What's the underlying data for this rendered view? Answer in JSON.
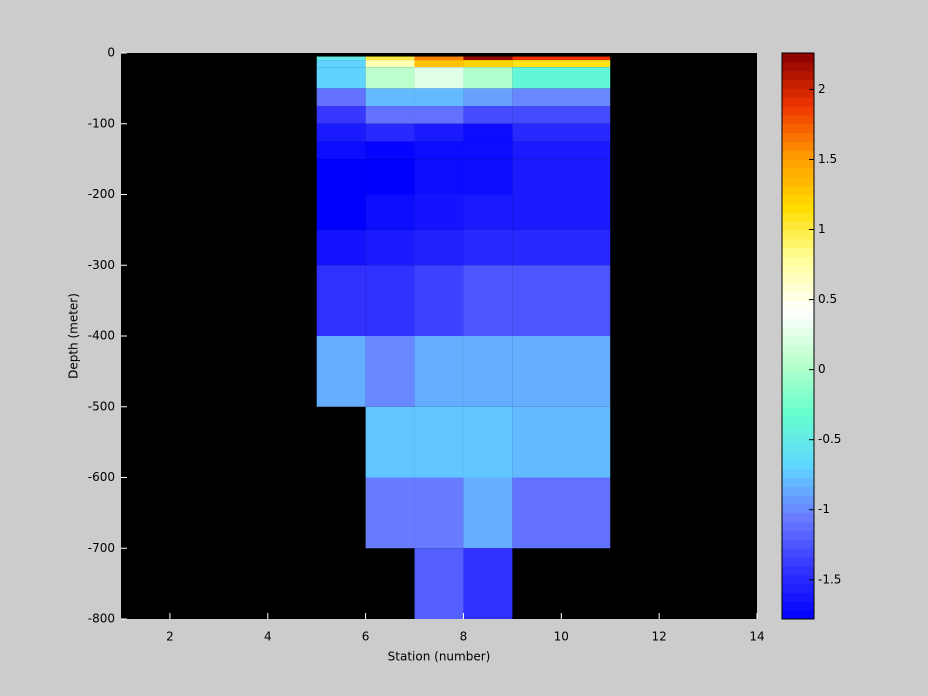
{
  "chart_data": {
    "type": "heatmap",
    "xlabel": "Station (number)",
    "ylabel": "Depth (meter)",
    "xlim": [
      1,
      14
    ],
    "ylim": [
      -800,
      0
    ],
    "xticks": [
      2,
      4,
      6,
      8,
      10,
      12,
      14
    ],
    "yticks": [
      0,
      -100,
      -200,
      -300,
      -400,
      -500,
      -600,
      -700,
      -800
    ],
    "x_edges": [
      5,
      6,
      7,
      8,
      9,
      11
    ],
    "y_edges": [
      -5,
      -10,
      -20,
      -50,
      -75,
      -100,
      -125,
      -150,
      -200,
      -250,
      -300,
      -400,
      -500,
      -600,
      -700,
      -800
    ],
    "values": [
      [
        -0.5,
        1.0,
        1.6,
        2.2,
        1.9
      ],
      [
        -0.7,
        0.7,
        1.3,
        1.2,
        1.1
      ],
      [
        -0.7,
        0.05,
        0.25,
        0.0,
        -0.4
      ],
      [
        -1.1,
        -0.8,
        -0.8,
        -0.9,
        -1.0
      ],
      [
        -1.4,
        -1.1,
        -1.1,
        -1.3,
        -1.3
      ],
      [
        -1.6,
        -1.5,
        -1.6,
        -1.7,
        -1.5
      ],
      [
        -1.7,
        -1.75,
        -1.7,
        -1.7,
        -1.6
      ],
      [
        -1.78,
        -1.78,
        -1.7,
        -1.7,
        -1.6
      ],
      [
        -1.78,
        -1.7,
        -1.65,
        -1.6,
        -1.6
      ],
      [
        -1.65,
        -1.6,
        -1.55,
        -1.5,
        -1.5
      ],
      [
        -1.45,
        -1.45,
        -1.35,
        -1.25,
        -1.25
      ],
      [
        -0.85,
        -1.0,
        -0.85,
        -0.85,
        -0.85
      ],
      [
        null,
        -0.75,
        -0.75,
        -0.75,
        -0.8
      ],
      [
        null,
        -1.05,
        -1.05,
        -0.85,
        -1.1
      ],
      [
        null,
        null,
        -1.2,
        -1.45,
        null
      ]
    ],
    "clim": [
      -1.78,
      2.26
    ],
    "cticks": [
      2,
      1.5,
      1,
      0.5,
      0,
      -0.5,
      -1,
      -1.5
    ],
    "colormap": [
      "#0000ff",
      "#3535ff",
      "#6a7dff",
      "#5fd8ff",
      "#66ffcc",
      "#bbffcc",
      "#ffffff",
      "#ffff99",
      "#ffdd00",
      "#ff9900",
      "#ee3300",
      "#880000"
    ],
    "missing_color": "#000000"
  }
}
